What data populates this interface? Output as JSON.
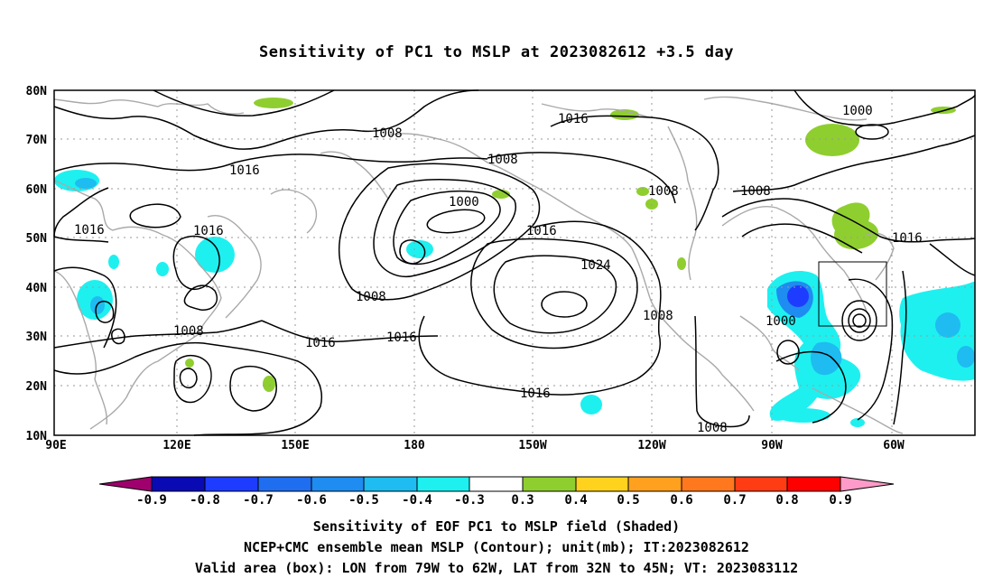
{
  "title": "Sensitivity of PC1 to MSLP at 2023082612 +3.5 day",
  "map": {
    "lat_ticks": [
      "80N",
      "70N",
      "60N",
      "50N",
      "40N",
      "30N",
      "20N",
      "10N"
    ],
    "lon_ticks": [
      "90E",
      "120E",
      "150E",
      "180",
      "150W",
      "120W",
      "90W",
      "60W"
    ],
    "isobar_labels": [
      "1008",
      "1016",
      "1000",
      "1008",
      "1016",
      "1008",
      "1016",
      "1008",
      "1016",
      "1000",
      "1016",
      "1008",
      "1024",
      "1016",
      "1016",
      "1008",
      "1008",
      "1016",
      "1008",
      "1000",
      "1016",
      "1008"
    ],
    "colors": {
      "coastline": "#a9a9a9",
      "contour": "#000000",
      "grid": "#9a9a9a",
      "neg_light": "#1ef0f0",
      "neg_mid": "#1ebcf0",
      "neg_strong": "#1f6ef0",
      "neg_deep": "#1e3cff",
      "pos_light": "#8fce2f"
    }
  },
  "colorbar": {
    "labels": [
      "-0.9",
      "-0.8",
      "-0.7",
      "-0.6",
      "-0.5",
      "-0.4",
      "-0.3",
      "0.3",
      "0.4",
      "0.5",
      "0.6",
      "0.7",
      "0.8",
      "0.9"
    ],
    "colors": [
      "#a0006e",
      "#0a0ab4",
      "#1e3cff",
      "#1f6ef0",
      "#1e8cf0",
      "#1ebcf0",
      "#1ef0f0",
      "#ffffff",
      "#8fce2f",
      "#ffd21e",
      "#ffa01e",
      "#ff781e",
      "#ff3c14",
      "#ff0000",
      "#ff9bc8"
    ]
  },
  "captions": {
    "line1": "Sensitivity of EOF PC1 to MSLP field (Shaded)",
    "line2": "NCEP+CMC ensemble mean MSLP (Contour); unit(mb); IT:2023082612",
    "line3": "Valid area (box): LON from 79W to 62W, LAT from 32N to 45N; VT: 2023083112"
  }
}
